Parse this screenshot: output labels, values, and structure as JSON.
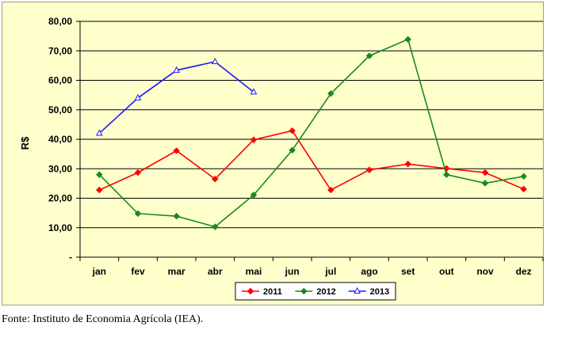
{
  "chart_data": {
    "type": "line",
    "ylabel": "R$",
    "ylim": [
      0,
      80
    ],
    "yticks": [
      {
        "value": 0,
        "label": "-"
      },
      {
        "value": 10,
        "label": "10,00"
      },
      {
        "value": 20,
        "label": "20,00"
      },
      {
        "value": 30,
        "label": "30,00"
      },
      {
        "value": 40,
        "label": "40,00"
      },
      {
        "value": 50,
        "label": "50,00"
      },
      {
        "value": 60,
        "label": "60,00"
      },
      {
        "value": 70,
        "label": "70,00"
      },
      {
        "value": 80,
        "label": "80,00"
      }
    ],
    "categories": [
      "jan",
      "fev",
      "mar",
      "abr",
      "mai",
      "jun",
      "jul",
      "ago",
      "set",
      "out",
      "nov",
      "dez"
    ],
    "grid": true,
    "legend": "bottom",
    "series": [
      {
        "name": "2011",
        "color": "#ff0000",
        "marker": "diamond",
        "values": [
          22.8,
          28.7,
          36.1,
          26.5,
          39.8,
          42.9,
          22.8,
          29.6,
          31.6,
          30.1,
          28.7,
          23.1
        ]
      },
      {
        "name": "2012",
        "color": "#1a8a1a",
        "marker": "diamond",
        "values": [
          28.0,
          14.8,
          13.9,
          10.3,
          21.1,
          36.3,
          55.5,
          68.3,
          73.9,
          28.0,
          25.1,
          27.4
        ]
      },
      {
        "name": "2013",
        "color": "#1a1aff",
        "marker": "triangle-open",
        "values": [
          42.0,
          54.0,
          63.4,
          66.3,
          56.0,
          null,
          null,
          null,
          null,
          null,
          null,
          null
        ]
      }
    ],
    "colors": {
      "background": "#ffffcc",
      "grid": "#000000"
    }
  },
  "source": "Fonte: Instituto de Economia Agrícola (IEA)."
}
